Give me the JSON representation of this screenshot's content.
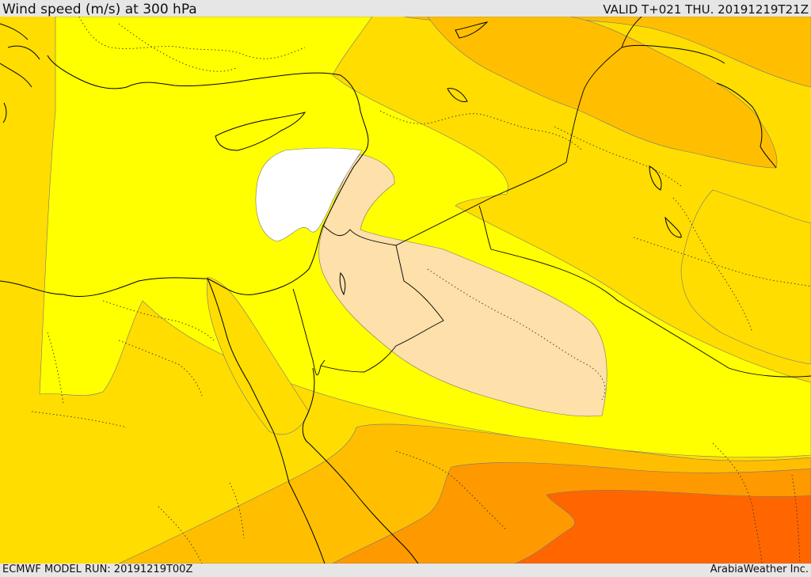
{
  "header": {
    "title": "Wind speed (m/s) at 300 hPa",
    "valid": "VALID T+021 THU. 20191219T21Z"
  },
  "footer": {
    "model_run": "ECMWF MODEL RUN: 20191219T00Z",
    "credit": "ArabiaWeather Inc."
  },
  "colors": {
    "bg_band": "#ffdd00",
    "band_yellow": "#ffff00",
    "band_gold": "#ffbf00",
    "band_orange": "#ff9900",
    "band_deep_orange": "#ff6600",
    "band_peach": "#fde0aa",
    "band_white": "#ffffff",
    "outline": "#000000"
  }
}
